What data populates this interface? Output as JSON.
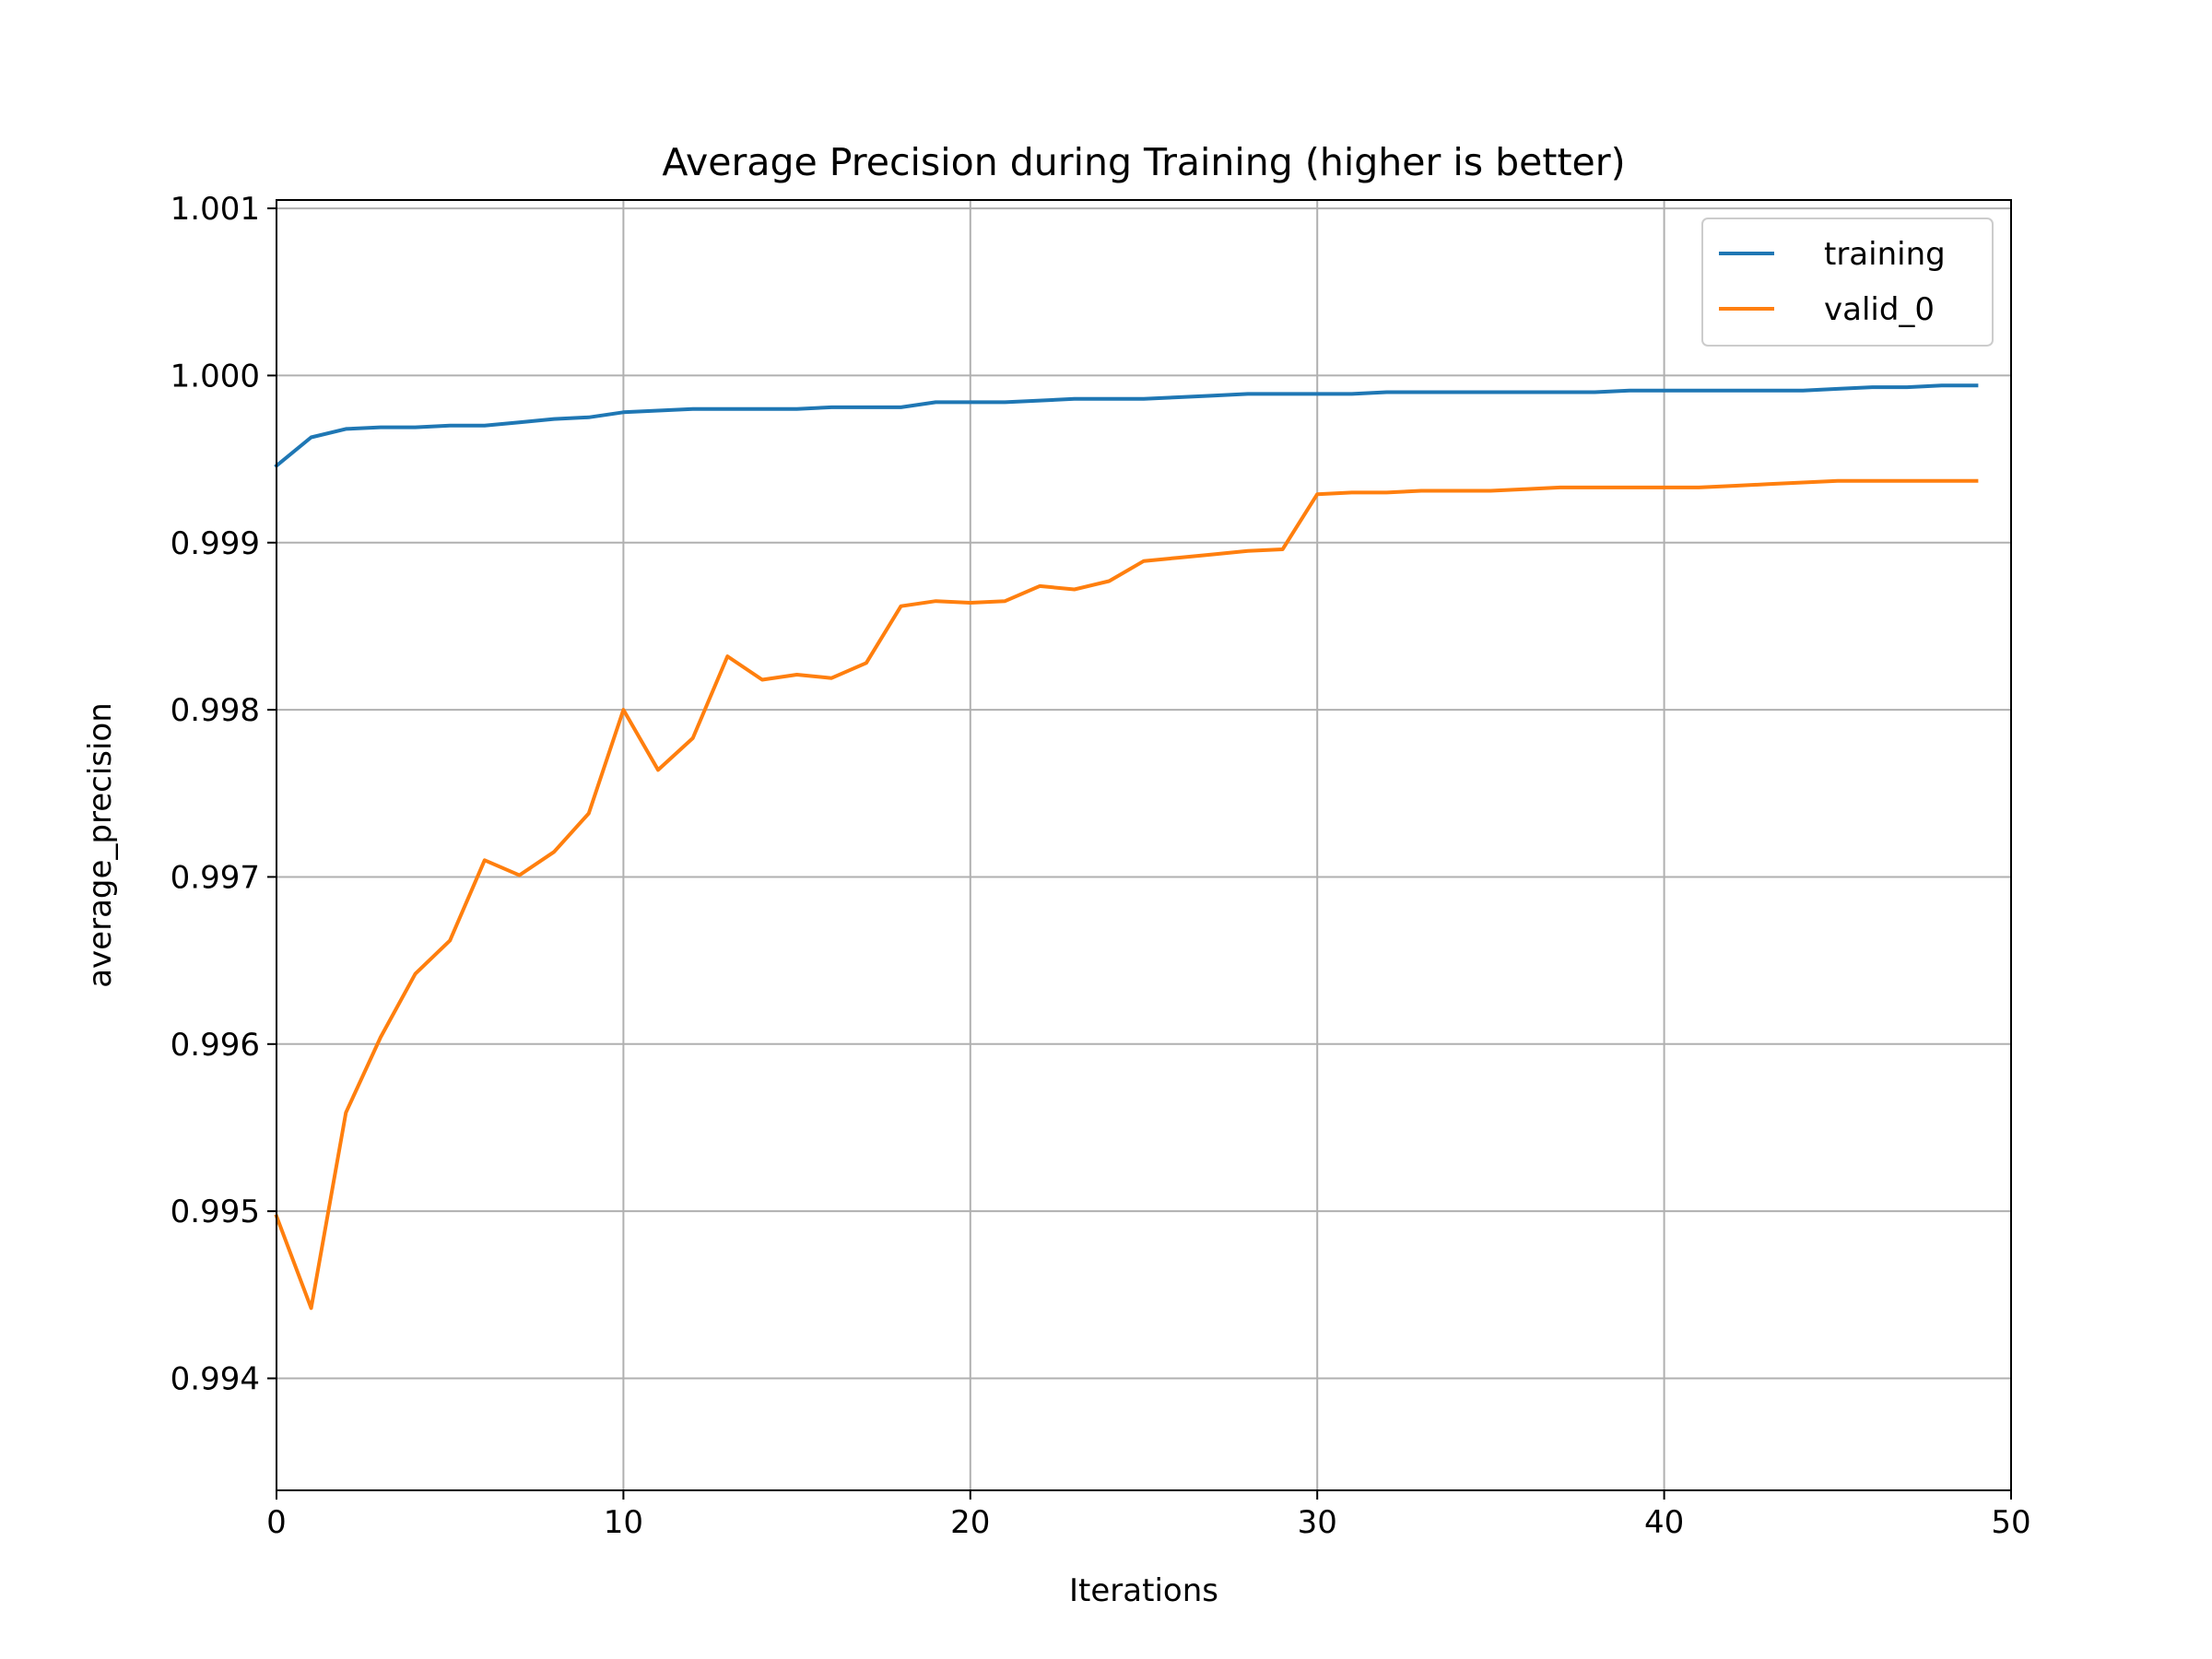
{
  "chart_data": {
    "type": "line",
    "title": "Average Precision during Training (higher is better)",
    "xlabel": "Iterations",
    "ylabel": "average_precision",
    "xlim": [
      0,
      50
    ],
    "ylim": [
      0.99333,
      1.00105
    ],
    "xticks": [
      "0",
      "10",
      "20",
      "30",
      "40",
      "50"
    ],
    "xtick_values": [
      0,
      10,
      20,
      30,
      40,
      50
    ],
    "yticks": [
      "0.994",
      "0.995",
      "0.996",
      "0.997",
      "0.998",
      "0.999",
      "1.000",
      "1.001"
    ],
    "ytick_values": [
      0.994,
      0.995,
      0.996,
      0.997,
      0.998,
      0.999,
      1.0,
      1.001
    ],
    "grid": true,
    "legend_position": "top-right",
    "x": [
      0,
      1,
      2,
      3,
      4,
      5,
      6,
      7,
      8,
      9,
      10,
      11,
      12,
      13,
      14,
      15,
      16,
      17,
      18,
      19,
      20,
      21,
      22,
      23,
      24,
      25,
      26,
      27,
      28,
      29,
      30,
      31,
      32,
      33,
      34,
      35,
      36,
      37,
      38,
      39,
      40,
      41,
      42,
      43,
      44,
      45,
      46,
      47,
      48,
      49
    ],
    "series": [
      {
        "name": "training",
        "color": "#1f77b4",
        "values": [
          0.99946,
          0.99963,
          0.99968,
          0.99969,
          0.99969,
          0.9997,
          0.9997,
          0.99972,
          0.99974,
          0.99975,
          0.99978,
          0.99979,
          0.9998,
          0.9998,
          0.9998,
          0.9998,
          0.99981,
          0.99981,
          0.99981,
          0.99984,
          0.99984,
          0.99984,
          0.99985,
          0.99986,
          0.99986,
          0.99986,
          0.99987,
          0.99988,
          0.99989,
          0.99989,
          0.99989,
          0.99989,
          0.9999,
          0.9999,
          0.9999,
          0.9999,
          0.9999,
          0.9999,
          0.9999,
          0.99991,
          0.99991,
          0.99991,
          0.99991,
          0.99991,
          0.99991,
          0.99992,
          0.99993,
          0.99993,
          0.99994,
          0.99994
        ]
      },
      {
        "name": "valid_0",
        "color": "#ff7f0e",
        "values": [
          0.99497,
          0.99442,
          0.99559,
          0.99604,
          0.99642,
          0.99662,
          0.9971,
          0.99701,
          0.99715,
          0.99738,
          0.998,
          0.99764,
          0.99783,
          0.99832,
          0.99818,
          0.99821,
          0.99819,
          0.99828,
          0.99862,
          0.99865,
          0.99864,
          0.99865,
          0.99874,
          0.99872,
          0.99877,
          0.99889,
          0.99891,
          0.99893,
          0.99895,
          0.99896,
          0.99929,
          0.9993,
          0.9993,
          0.99931,
          0.99931,
          0.99931,
          0.99932,
          0.99933,
          0.99933,
          0.99933,
          0.99933,
          0.99933,
          0.99934,
          0.99935,
          0.99936,
          0.99937,
          0.99937,
          0.99937,
          0.99937,
          0.99937
        ]
      }
    ]
  }
}
